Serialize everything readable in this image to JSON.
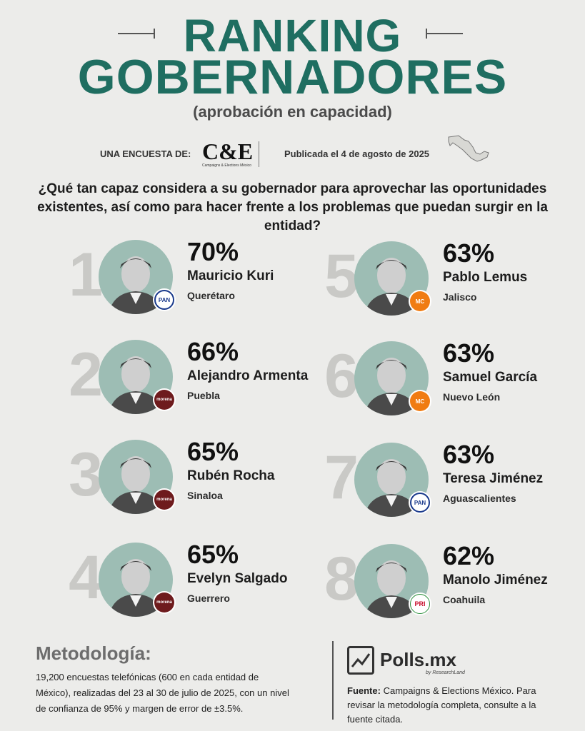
{
  "header": {
    "title_line1": "RANKING",
    "title_line2": "GOBERNADORES",
    "subtitle": "(aprobación en capacidad)"
  },
  "survey": {
    "label": "UNA ENCUESTA DE:",
    "logo_text": "C&E",
    "logo_subtext": "Campaigns & Elections México",
    "published": "Publicada el 4 de agosto de 2025"
  },
  "question": "¿Qué tan capaz considera a su gobernador para aprovechar las oportunidades existentes, así como para hacer frente a los problemas que puedan surgir en la entidad?",
  "rankings": [
    {
      "rank": "1",
      "pct": "70%",
      "name": "Mauricio Kuri",
      "state": "Querétaro",
      "party": "PAN"
    },
    {
      "rank": "2",
      "pct": "66%",
      "name": "Alejandro Armenta",
      "state": "Puebla",
      "party": "morena"
    },
    {
      "rank": "3",
      "pct": "65%",
      "name": "Rubén Rocha",
      "state": "Sinaloa",
      "party": "morena"
    },
    {
      "rank": "4",
      "pct": "65%",
      "name": "Evelyn Salgado",
      "state": "Guerrero",
      "party": "morena"
    },
    {
      "rank": "5",
      "pct": "63%",
      "name": "Pablo Lemus",
      "state": "Jalisco",
      "party": "MC"
    },
    {
      "rank": "6",
      "pct": "63%",
      "name": "Samuel García",
      "state": "Nuevo León",
      "party": "MC"
    },
    {
      "rank": "7",
      "pct": "63%",
      "name": "Teresa Jiménez",
      "state": "Aguascalientes",
      "party": "PAN"
    },
    {
      "rank": "8",
      "pct": "62%",
      "name": "Manolo Jiménez",
      "state": "Coahuila",
      "party": "PRI"
    }
  ],
  "methodology": {
    "title": "Metodología:",
    "text": "19,200 encuestas telefónicas (600 en cada entidad de México), realizadas del 23 al 30 de julio de 2025, con un nivel de confianza de 95% y margen de error de ±3.5%."
  },
  "footer": {
    "brand": "Polls.mx",
    "brand_sub": "by ResearchLand",
    "source_label": "Fuente:",
    "source_text": "Campaigns & Elections México. Para revisar la metodología completa, consulte a la fuente citada."
  },
  "colors": {
    "title": "#1f6e61",
    "photo_bg": "#9dbdb4",
    "rank_number": "#c9c9c6",
    "background": "#ececea"
  }
}
